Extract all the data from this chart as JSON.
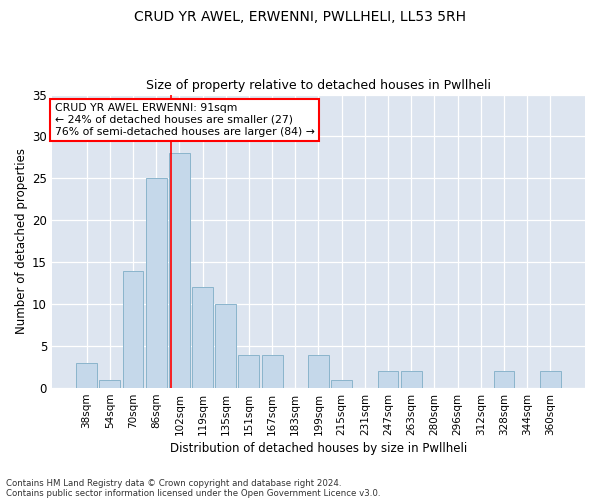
{
  "title1": "CRUD YR AWEL, ERWENNI, PWLLHELI, LL53 5RH",
  "title2": "Size of property relative to detached houses in Pwllheli",
  "xlabel": "Distribution of detached houses by size in Pwllheli",
  "ylabel": "Number of detached properties",
  "categories": [
    "38sqm",
    "54sqm",
    "70sqm",
    "86sqm",
    "102sqm",
    "119sqm",
    "135sqm",
    "151sqm",
    "167sqm",
    "183sqm",
    "199sqm",
    "215sqm",
    "231sqm",
    "247sqm",
    "263sqm",
    "280sqm",
    "296sqm",
    "312sqm",
    "328sqm",
    "344sqm",
    "360sqm"
  ],
  "values": [
    3,
    1,
    14,
    25,
    28,
    12,
    10,
    4,
    4,
    0,
    4,
    1,
    0,
    2,
    2,
    0,
    0,
    0,
    2,
    0,
    2
  ],
  "bar_color": "#c5d8ea",
  "bar_edge_color": "#8ab4cc",
  "red_line_x": 3.62,
  "annotation_text": "CRUD YR AWEL ERWENNI: 91sqm\n← 24% of detached houses are smaller (27)\n76% of semi-detached houses are larger (84) →",
  "annotation_box_color": "white",
  "annotation_box_edge": "red",
  "footer1": "Contains HM Land Registry data © Crown copyright and database right 2024.",
  "footer2": "Contains public sector information licensed under the Open Government Licence v3.0.",
  "ylim": [
    0,
    35
  ],
  "bg_color": "#dde5f0",
  "plot_bg_color": "#dde5f0",
  "grid_color": "white",
  "fig_bg_color": "#ffffff"
}
